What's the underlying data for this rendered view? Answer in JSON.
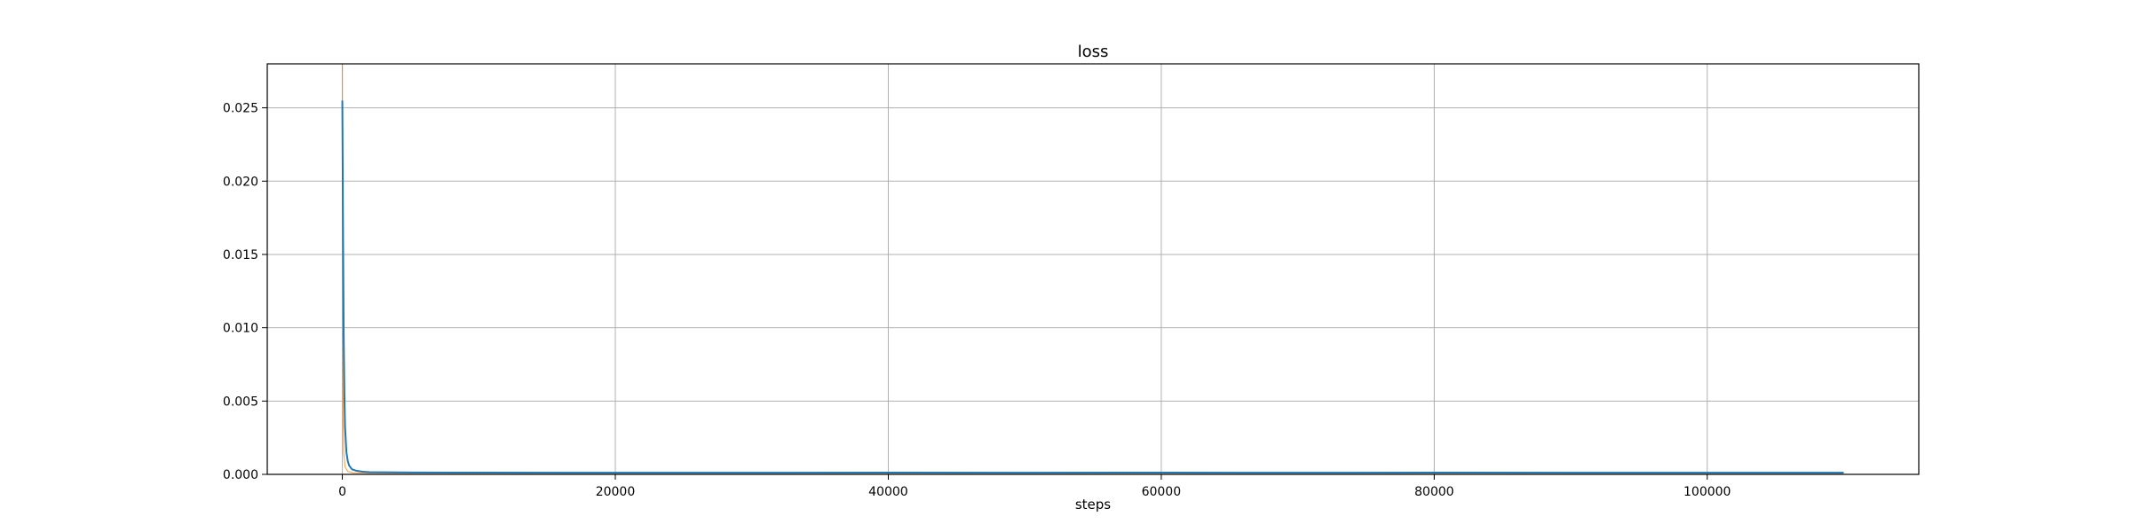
{
  "chart_data": {
    "type": "line",
    "title": "loss",
    "xlabel": "steps",
    "ylabel": "",
    "xlim": [
      -5500,
      115500
    ],
    "ylim": [
      0,
      0.028
    ],
    "x_ticks": [
      0,
      20000,
      40000,
      60000,
      80000,
      100000
    ],
    "x_tick_labels": [
      "0",
      "20000",
      "40000",
      "60000",
      "80000",
      "100000"
    ],
    "y_ticks": [
      0.0,
      0.005,
      0.01,
      0.015,
      0.02,
      0.025
    ],
    "y_tick_labels": [
      "0.000",
      "0.005",
      "0.010",
      "0.015",
      "0.020",
      "0.025"
    ],
    "grid": true,
    "legend": "none",
    "series": [
      {
        "color": "#1f77b4",
        "x": [
          0,
          50,
          100,
          150,
          200,
          300,
          400,
          500,
          700,
          1000,
          1500,
          2000,
          3000,
          5000,
          10000,
          20000,
          30000,
          40000,
          50000,
          60000,
          70000,
          80000,
          90000,
          100000,
          110000
        ],
        "y": [
          0.0255,
          0.017,
          0.0095,
          0.0055,
          0.0032,
          0.0015,
          0.0009,
          0.0006,
          0.00035,
          0.00025,
          0.00018,
          0.00015,
          0.00014,
          0.00013,
          0.00012,
          0.00011,
          0.00011,
          0.00012,
          0.00011,
          0.00012,
          0.00011,
          0.00012,
          0.00011,
          0.00011,
          0.00011
        ]
      },
      {
        "color": "#ff7f0e",
        "x": [
          0,
          10,
          30,
          60,
          100,
          200,
          400,
          800,
          2000,
          110000
        ],
        "y": [
          0.028,
          0.02,
          0.01,
          0.004,
          0.0015,
          0.0005,
          0.0002,
          0.0001,
          8e-05,
          8e-05
        ]
      }
    ]
  }
}
